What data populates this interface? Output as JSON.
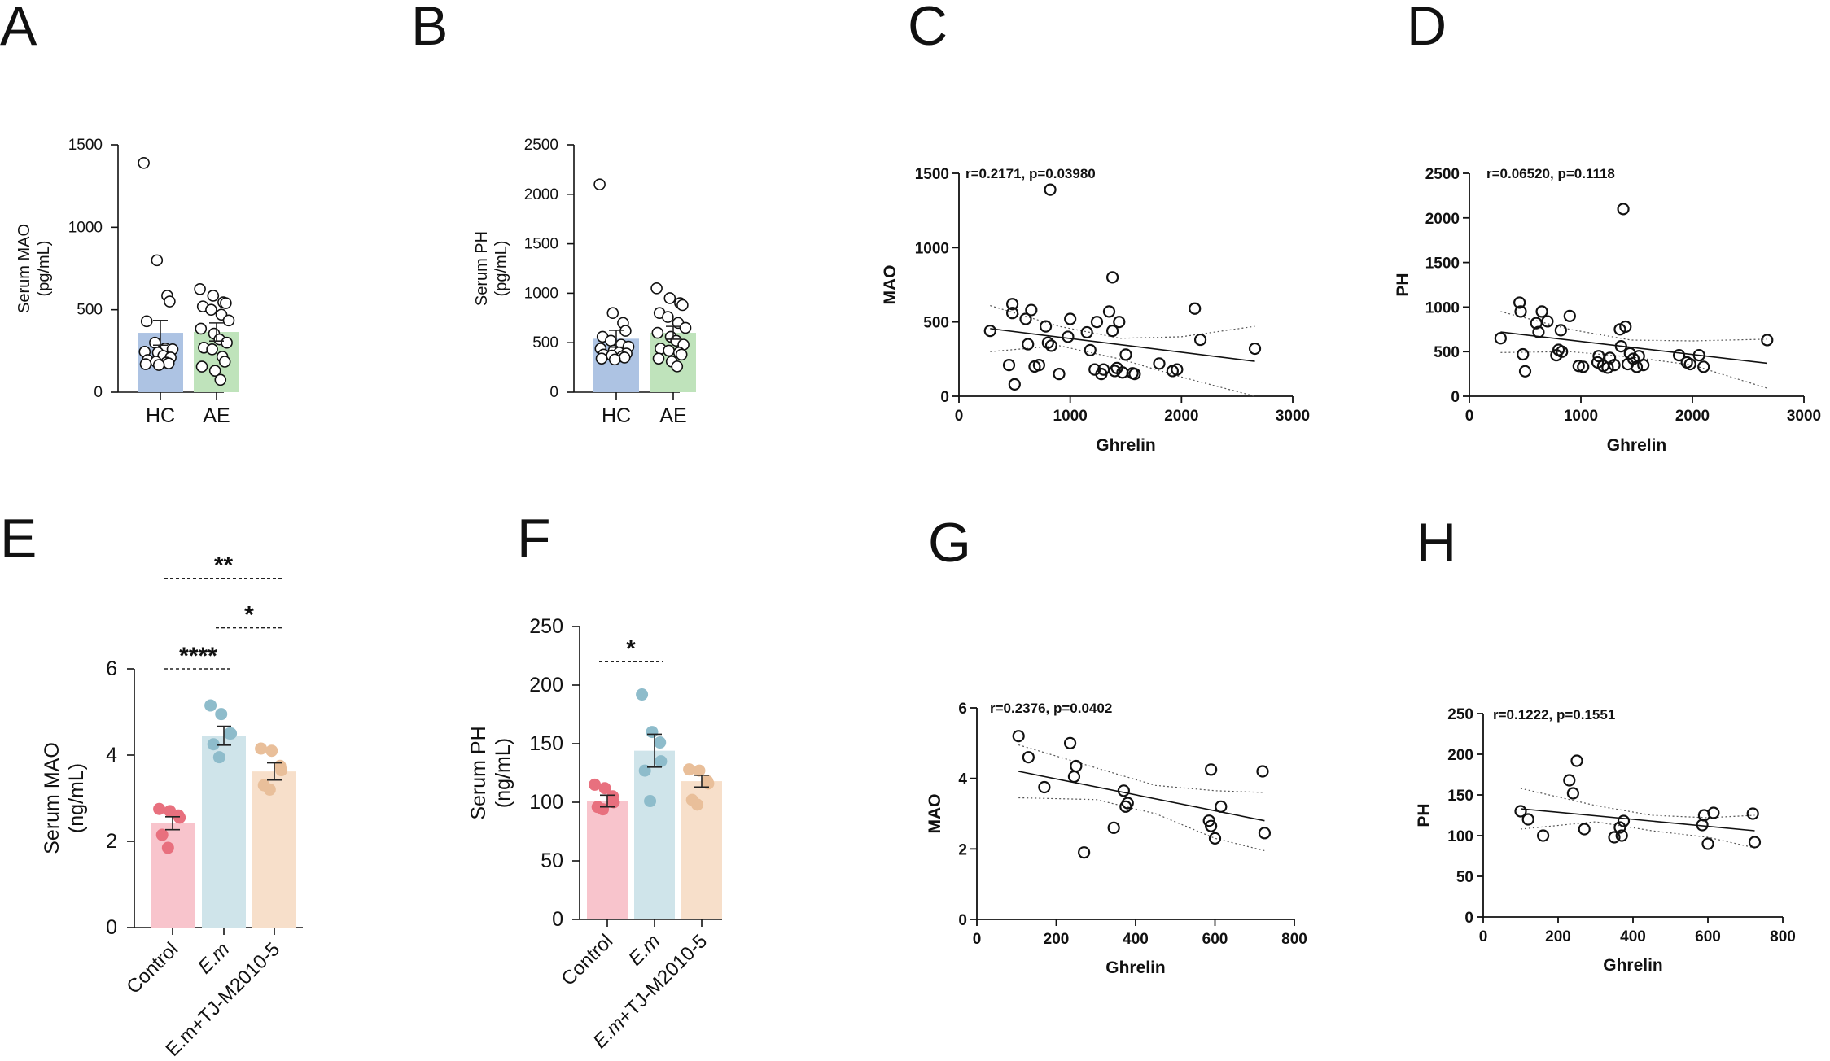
{
  "chart_data": [
    {
      "id": "A",
      "type": "bar",
      "panel_label": "A",
      "ylabel_lines": [
        "Serum MAO",
        "(pg/mL)"
      ],
      "categories": [
        "HC",
        "AE"
      ],
      "values": [
        360,
        365
      ],
      "sem": [
        75,
        55
      ],
      "colors": [
        "#adc3e3",
        "#bfe3bb"
      ],
      "ylim": [
        0,
        1500
      ],
      "yticks": [
        0,
        500,
        1000,
        1500
      ],
      "points": [
        [
          1390,
          800,
          585,
          550,
          430,
          300,
          265,
          260,
          245,
          240,
          220,
          210,
          195,
          185,
          180,
          175,
          170,
          165
        ],
        [
          625,
          585,
          545,
          540,
          520,
          500,
          470,
          435,
          385,
          355,
          320,
          300,
          270,
          260,
          215,
          185,
          155,
          130,
          75
        ]
      ]
    },
    {
      "id": "B",
      "type": "bar",
      "panel_label": "B",
      "ylabel_lines": [
        "Serum PH",
        "(pg/mL)"
      ],
      "categories": [
        "HC",
        "AE"
      ],
      "values": [
        540,
        600
      ],
      "sem": [
        85,
        65
      ],
      "colors": [
        "#adc3e3",
        "#bfe3bb"
      ],
      "ylim": [
        0,
        2500
      ],
      "yticks": [
        0,
        500,
        1000,
        1500,
        2000,
        2500
      ],
      "points": [
        [
          2100,
          800,
          700,
          620,
          560,
          520,
          480,
          460,
          440,
          420,
          400,
          390,
          380,
          370,
          360,
          350,
          340,
          330
        ],
        [
          1050,
          950,
          900,
          880,
          800,
          760,
          700,
          650,
          600,
          560,
          520,
          480,
          440,
          420,
          400,
          380,
          340,
          310,
          260
        ]
      ]
    },
    {
      "id": "C",
      "type": "scatter",
      "panel_label": "C",
      "annotation": "r=0.2171, p=0.03980",
      "xlabel": "Ghrelin",
      "ylabel": "MAO",
      "xlim": [
        0,
        3000
      ],
      "ylim": [
        0,
        1500
      ],
      "xticks": [
        0,
        1000,
        2000,
        3000
      ],
      "yticks": [
        0,
        500,
        1000,
        1500
      ],
      "x": [
        280,
        450,
        480,
        480,
        500,
        600,
        620,
        650,
        680,
        720,
        780,
        820,
        830,
        900,
        980,
        1000,
        1150,
        1180,
        1220,
        1240,
        1280,
        1300,
        1350,
        1380,
        1400,
        1420,
        1440,
        1470,
        1500,
        1560,
        1580,
        1800,
        1920,
        1960,
        2120,
        2170,
        2660,
        800,
        1380
      ],
      "y": [
        440,
        210,
        620,
        560,
        80,
        520,
        350,
        580,
        200,
        210,
        470,
        1390,
        340,
        150,
        400,
        520,
        430,
        310,
        180,
        500,
        150,
        180,
        570,
        440,
        170,
        190,
        500,
        160,
        280,
        155,
        150,
        220,
        170,
        180,
        590,
        380,
        320,
        360,
        800
      ],
      "fit": [
        [
          280,
          455
        ],
        [
          2660,
          235
        ]
      ],
      "ci_upper": [
        [
          280,
          610
        ],
        [
          900,
          470
        ],
        [
          1450,
          390
        ],
        [
          2000,
          400
        ],
        [
          2660,
          470
        ]
      ],
      "ci_lower": [
        [
          280,
          300
        ],
        [
          900,
          340
        ],
        [
          1450,
          250
        ],
        [
          2000,
          130
        ],
        [
          2660,
          0
        ]
      ]
    },
    {
      "id": "D",
      "type": "scatter",
      "panel_label": "D",
      "annotation": "r=0.06520, p=0.1118",
      "xlabel": "Ghrelin",
      "ylabel": "PH",
      "xlim": [
        0,
        3000
      ],
      "ylim": [
        0,
        2500
      ],
      "xticks": [
        0,
        1000,
        2000,
        3000
      ],
      "yticks": [
        0,
        500,
        1000,
        1500,
        2000,
        2500
      ],
      "x": [
        280,
        450,
        460,
        480,
        500,
        600,
        620,
        650,
        700,
        780,
        800,
        820,
        830,
        900,
        980,
        1020,
        1150,
        1160,
        1200,
        1240,
        1260,
        1300,
        1350,
        1360,
        1380,
        1400,
        1420,
        1440,
        1470,
        1500,
        1520,
        1560,
        1880,
        1950,
        1980,
        2060,
        2100,
        2670
      ],
      "y": [
        650,
        1050,
        950,
        470,
        280,
        820,
        720,
        950,
        840,
        460,
        520,
        740,
        500,
        900,
        340,
        330,
        380,
        450,
        340,
        320,
        430,
        350,
        750,
        560,
        2100,
        780,
        360,
        480,
        420,
        330,
        450,
        350,
        460,
        380,
        360,
        460,
        330,
        630
      ],
      "fit": [
        [
          280,
          720
        ],
        [
          2670,
          370
        ]
      ],
      "ci_upper": [
        [
          280,
          950
        ],
        [
          900,
          750
        ],
        [
          1450,
          630
        ],
        [
          2000,
          620
        ],
        [
          2670,
          640
        ]
      ],
      "ci_lower": [
        [
          280,
          490
        ],
        [
          900,
          500
        ],
        [
          1450,
          440
        ],
        [
          2000,
          350
        ],
        [
          2670,
          90
        ]
      ]
    },
    {
      "id": "E",
      "type": "bar",
      "panel_label": "E",
      "ylabel_lines": [
        "Serum MAO",
        "(ng/mL)"
      ],
      "categories": [
        "Control",
        "E.m",
        "E.m+TJ-M2010-5"
      ],
      "italic_categories": [
        false,
        true,
        false
      ],
      "values": [
        2.42,
        4.45,
        3.62
      ],
      "sem": [
        0.15,
        0.22,
        0.2
      ],
      "colors": [
        "#f8c4cc",
        "#cfe4ea",
        "#f7dfca"
      ],
      "point_colors": [
        "#e8707e",
        "#8ebccb",
        "#e9bf9a"
      ],
      "ylim": [
        0,
        6
      ],
      "yticks": [
        0,
        2,
        4,
        6
      ],
      "points": [
        [
          2.75,
          2.7,
          2.6,
          2.55,
          2.15,
          1.85
        ],
        [
          5.15,
          4.95,
          4.5,
          4.5,
          4.25,
          3.95
        ],
        [
          4.15,
          4.1,
          3.75,
          3.65,
          3.3,
          3.2
        ]
      ],
      "sig": [
        {
          "from": 0,
          "to": 1,
          "label": "****",
          "level": 6.0
        },
        {
          "from": 1,
          "to": 2,
          "label": "*",
          "level": 6.95
        },
        {
          "from": 0,
          "to": 2,
          "label": "**",
          "level": 8.1
        }
      ]
    },
    {
      "id": "F",
      "type": "bar",
      "panel_label": "F",
      "ylabel_lines": [
        "Serum PH",
        "(ng/mL)"
      ],
      "categories": [
        "Control",
        "E.m",
        "E.m+TJ-M2010-5"
      ],
      "italic_categories": [
        false,
        true,
        true
      ],
      "values": [
        101,
        144,
        118
      ],
      "sem": [
        5,
        14,
        5
      ],
      "colors": [
        "#f8c4cc",
        "#cfe4ea",
        "#f7dfca"
      ],
      "point_colors": [
        "#e8707e",
        "#8ebccb",
        "#e9bf9a"
      ],
      "ylim": [
        0,
        250
      ],
      "yticks": [
        0,
        50,
        100,
        150,
        200,
        250
      ],
      "points": [
        [
          115,
          112,
          105,
          100,
          96,
          94
        ],
        [
          192,
          160,
          151,
          135,
          127,
          101
        ],
        [
          128,
          127,
          118,
          116,
          102,
          98
        ]
      ],
      "sig": [
        {
          "from": 0,
          "to": 1,
          "label": "*",
          "level": 220
        }
      ]
    },
    {
      "id": "G",
      "type": "scatter",
      "panel_label": "G",
      "annotation": "r=0.2376, p=0.0402",
      "xlabel": "Ghrelin",
      "ylabel": "MAO",
      "xlim": [
        0,
        800
      ],
      "ylim": [
        0,
        6
      ],
      "xticks": [
        0,
        200,
        400,
        600,
        800
      ],
      "yticks": [
        0,
        2,
        4,
        6
      ],
      "x": [
        105,
        130,
        170,
        235,
        245,
        250,
        270,
        345,
        370,
        375,
        380,
        585,
        590,
        590,
        600,
        615,
        720,
        725
      ],
      "y": [
        5.2,
        4.6,
        3.75,
        5.0,
        4.05,
        4.35,
        1.9,
        2.6,
        3.65,
        3.2,
        3.3,
        2.8,
        2.65,
        4.25,
        2.3,
        3.2,
        4.2,
        2.45
      ],
      "fit": [
        [
          105,
          4.2
        ],
        [
          725,
          2.8
        ]
      ],
      "ci_upper": [
        [
          105,
          4.95
        ],
        [
          300,
          4.3
        ],
        [
          450,
          3.8
        ],
        [
          600,
          3.65
        ],
        [
          725,
          3.6
        ]
      ],
      "ci_lower": [
        [
          105,
          3.45
        ],
        [
          300,
          3.4
        ],
        [
          450,
          3.0
        ],
        [
          600,
          2.3
        ],
        [
          725,
          1.95
        ]
      ]
    },
    {
      "id": "H",
      "type": "scatter",
      "panel_label": "H",
      "annotation": "r=0.1222, p=0.1551",
      "xlabel": "Ghrelin",
      "ylabel": "PH",
      "xlim": [
        0,
        800
      ],
      "ylim": [
        0,
        250
      ],
      "xticks": [
        0,
        200,
        400,
        600,
        800
      ],
      "yticks": [
        0,
        50,
        100,
        150,
        200,
        250
      ],
      "x": [
        100,
        120,
        160,
        230,
        240,
        250,
        270,
        350,
        365,
        370,
        375,
        585,
        590,
        600,
        615,
        720,
        725
      ],
      "y": [
        130,
        120,
        100,
        168,
        152,
        192,
        108,
        98,
        110,
        100,
        118,
        113,
        125,
        90,
        128,
        127,
        92
      ],
      "fit": [
        [
          100,
          133
        ],
        [
          725,
          106
        ]
      ],
      "ci_upper": [
        [
          100,
          158
        ],
        [
          300,
          137
        ],
        [
          450,
          125
        ],
        [
          600,
          122
        ],
        [
          725,
          125
        ]
      ],
      "ci_lower": [
        [
          100,
          108
        ],
        [
          300,
          117
        ],
        [
          450,
          106
        ],
        [
          600,
          98
        ],
        [
          725,
          85
        ]
      ]
    }
  ]
}
